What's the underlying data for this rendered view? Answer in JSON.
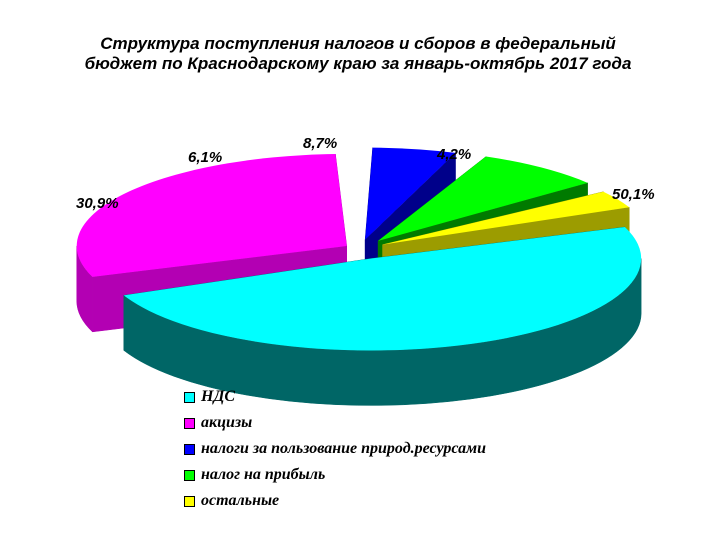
{
  "chart_data": {
    "type": "pie",
    "title_lines": [
      "Структура поступления налогов и сборов в федеральный",
      "бюджет по Краснодарскому краю за январь-октябрь 2017 года"
    ],
    "slices": [
      {
        "name": "НДС",
        "value": 50.1,
        "label": "50,1%",
        "color": "#00FFFF",
        "side_color": "#006666"
      },
      {
        "name": "акцизы",
        "value": 30.9,
        "label": "30,9%",
        "color": "#FF00FF",
        "side_color": "#B300B3"
      },
      {
        "name": "налоги за пользование природ.ресурсами",
        "value": 6.1,
        "label": "6,1%",
        "color": "#0000FF",
        "side_color": "#00008A"
      },
      {
        "name": "налог на прибыль",
        "value": 8.7,
        "label": "8,7%",
        "color": "#00FF00",
        "side_color": "#007A00"
      },
      {
        "name": "остальные",
        "value": 4.2,
        "label": "4,2%",
        "color": "#FFFF00",
        "side_color": "#9C9C00"
      }
    ],
    "legend_position": "bottom-left",
    "grid": false
  }
}
